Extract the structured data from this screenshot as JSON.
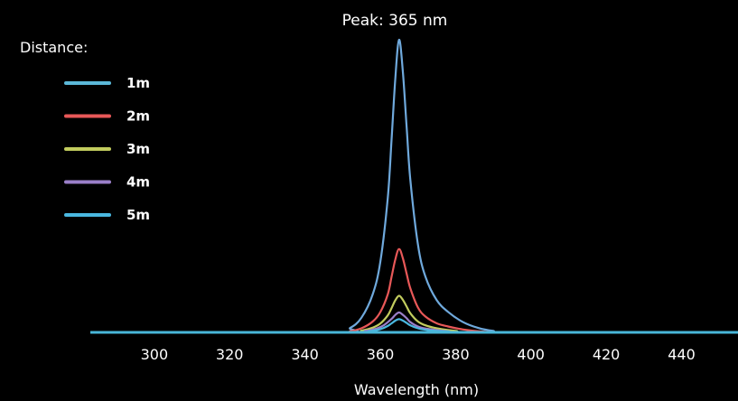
{
  "chart_data": {
    "type": "line",
    "title": "Peak: 365 nm",
    "xlabel": "Wavelength (nm)",
    "ylabel": "",
    "xlim": [
      283,
      455
    ],
    "ylim": [
      0,
      1.0
    ],
    "xticks": [
      300,
      320,
      340,
      360,
      380,
      400,
      420,
      440
    ],
    "grid": false,
    "legend": {
      "title": "Distance:",
      "placement": "top-left"
    },
    "series": [
      {
        "name": "1m",
        "color": "#6fa9dc",
        "legend_color": "#5bb8d8",
        "x": [
          283,
          348,
          352,
          355,
          358,
          360,
          362,
          363,
          364,
          365,
          366,
          367,
          368,
          370,
          372,
          375,
          378,
          382,
          386,
          390,
          395,
          455
        ],
        "y": [
          0,
          0,
          0.015,
          0.05,
          0.13,
          0.24,
          0.46,
          0.66,
          0.87,
          1.0,
          0.89,
          0.7,
          0.52,
          0.3,
          0.19,
          0.11,
          0.07,
          0.035,
          0.015,
          0.005,
          0,
          0
        ]
      },
      {
        "name": "2m",
        "color": "#e85858",
        "legend_color": "#e85858",
        "x": [
          283,
          348,
          352,
          355,
          358,
          360,
          362,
          363,
          364,
          365,
          366,
          367,
          368,
          370,
          372,
          375,
          378,
          382,
          386,
          390,
          395,
          455
        ],
        "y": [
          0,
          0,
          0.004,
          0.014,
          0.037,
          0.069,
          0.13,
          0.19,
          0.25,
          0.285,
          0.253,
          0.2,
          0.15,
          0.085,
          0.054,
          0.031,
          0.02,
          0.01,
          0.004,
          0.001,
          0,
          0
        ]
      },
      {
        "name": "3m",
        "color": "#c2cc5e",
        "legend_color": "#c2cc5e",
        "x": [
          283,
          350,
          355,
          358,
          360,
          362,
          363,
          364,
          365,
          366,
          367,
          368,
          370,
          372,
          375,
          380,
          388,
          455
        ],
        "y": [
          0,
          0,
          0.006,
          0.016,
          0.03,
          0.058,
          0.083,
          0.11,
          0.125,
          0.111,
          0.088,
          0.065,
          0.037,
          0.024,
          0.014,
          0.005,
          0,
          0
        ]
      },
      {
        "name": "4m",
        "color": "#9a7fc8",
        "legend_color": "#9a7fc8",
        "x": [
          283,
          351,
          356,
          359,
          361,
          363,
          364,
          365,
          366,
          367,
          368,
          370,
          373,
          378,
          385,
          455
        ],
        "y": [
          0,
          0,
          0.005,
          0.013,
          0.025,
          0.046,
          0.06,
          0.068,
          0.06,
          0.048,
          0.035,
          0.02,
          0.011,
          0.004,
          0,
          0
        ]
      },
      {
        "name": "5m",
        "color": "#4ab8e0",
        "legend_color": "#4ab8e0",
        "x": [
          283,
          352,
          357,
          360,
          362,
          363,
          364,
          365,
          366,
          367,
          368,
          370,
          373,
          378,
          385,
          455
        ],
        "y": [
          0,
          0,
          0.004,
          0.011,
          0.022,
          0.031,
          0.04,
          0.045,
          0.04,
          0.032,
          0.024,
          0.014,
          0.007,
          0.003,
          0,
          0
        ]
      }
    ]
  }
}
